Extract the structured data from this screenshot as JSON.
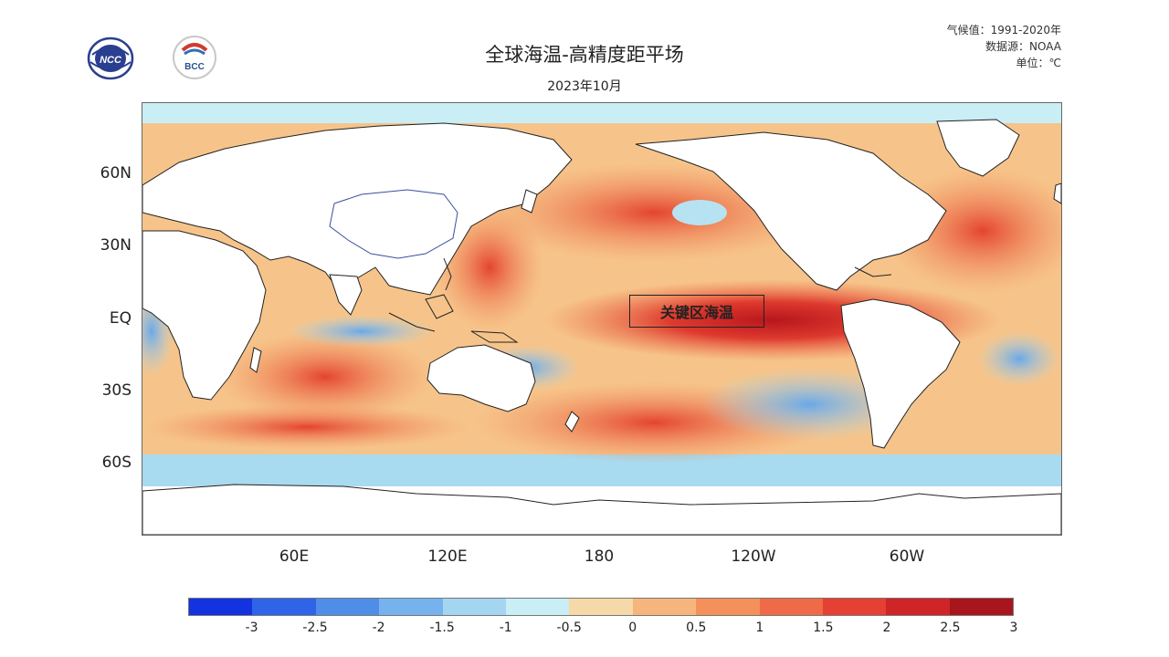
{
  "header": {
    "title": "全球海温-高精度距平场",
    "subtitle": "2023年10月"
  },
  "meta": {
    "climatology": "气候值：1991-2020年",
    "source": "数据源：NOAA",
    "unit": "单位：℃"
  },
  "logos": {
    "ncc": "NCC",
    "bcc": "BCC"
  },
  "map": {
    "lat_labels": [
      "60N",
      "30N",
      "EQ",
      "30S",
      "60S"
    ],
    "lon_labels": [
      "60E",
      "120E",
      "180",
      "120W",
      "60W"
    ],
    "key_region_label": "关键区海温"
  },
  "colorbar": {
    "colors": [
      "#1433e0",
      "#2f64e8",
      "#4f8ee6",
      "#76b3ee",
      "#a4d6f1",
      "#c9eef6",
      "#f6d9a8",
      "#f6b57c",
      "#f4905c",
      "#ef6a46",
      "#e44033",
      "#cf2428",
      "#a9151d"
    ],
    "tick_labels": [
      "-3",
      "-2.5",
      "-2",
      "-1.5",
      "-1",
      "-0.5",
      "0",
      "0.5",
      "1",
      "1.5",
      "2",
      "2.5",
      "3"
    ]
  }
}
